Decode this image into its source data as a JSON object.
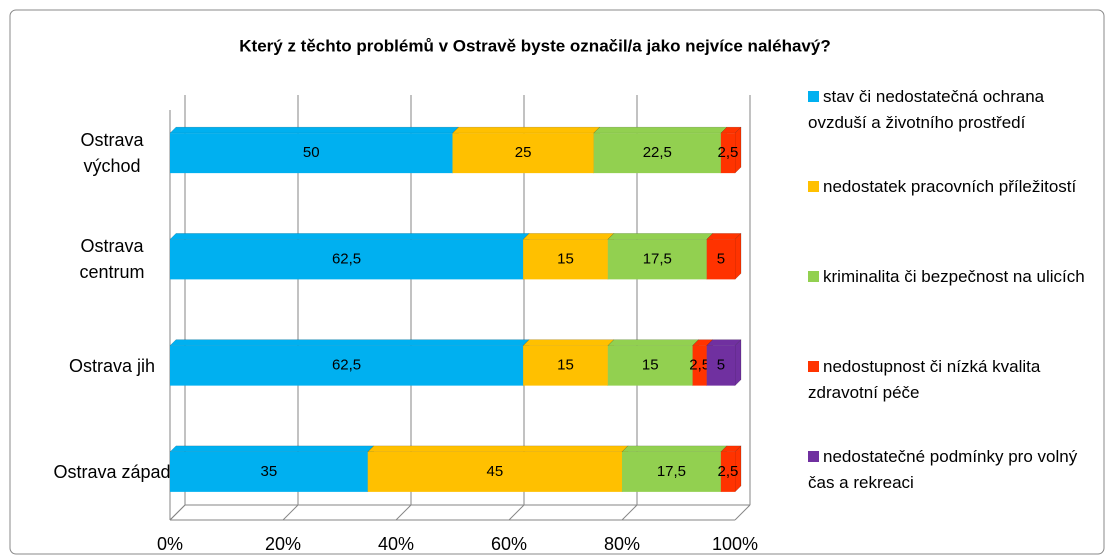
{
  "chart_data": {
    "type": "bar",
    "orientation": "horizontal",
    "stacked": true,
    "title": "Který z těchto problémů v Ostravě byste označil/a jako nejvíce naléhavý?",
    "categories": [
      "Ostrava východ",
      "Ostrava centrum",
      "Ostrava jih",
      "Ostrava západ"
    ],
    "series": [
      {
        "name": "stav či nedostatečná ochrana ovzduší a životního prostředí",
        "color": "#00B0F0",
        "values": [
          50,
          62.5,
          62.5,
          35
        ],
        "value_labels": [
          "50",
          "62,5",
          "62,5",
          "35"
        ]
      },
      {
        "name": "nedostatek pracovních příležitostí",
        "color": "#FFC000",
        "values": [
          25,
          15,
          15,
          45
        ],
        "value_labels": [
          "25",
          "15",
          "15",
          "45"
        ]
      },
      {
        "name": "kriminalita či bezpečnost na ulicích",
        "color": "#92D050",
        "values": [
          22.5,
          17.5,
          15,
          17.5
        ],
        "value_labels": [
          "22,5",
          "17,5",
          "15",
          "17,5"
        ]
      },
      {
        "name": "nedostupnost či nízká kvalita zdravotní péče",
        "color": "#FF3300",
        "values": [
          2.5,
          5,
          2.5,
          2.5
        ],
        "value_labels": [
          "2,5",
          "5",
          "2,5",
          "2,5"
        ]
      },
      {
        "name": "nedostatečné podmínky pro volný čas a rekreaci",
        "color": "#7030A0",
        "values": [
          0,
          0,
          5,
          0
        ],
        "value_labels": [
          null,
          null,
          "5",
          null
        ]
      }
    ],
    "xlim": [
      0,
      100
    ],
    "xticks": [
      {
        "value": 0,
        "label": "0%"
      },
      {
        "value": 20,
        "label": "20%"
      },
      {
        "value": 40,
        "label": "40%"
      },
      {
        "value": 60,
        "label": "60%"
      },
      {
        "value": 80,
        "label": "80%"
      },
      {
        "value": 100,
        "label": "100%"
      }
    ],
    "grid": true
  }
}
